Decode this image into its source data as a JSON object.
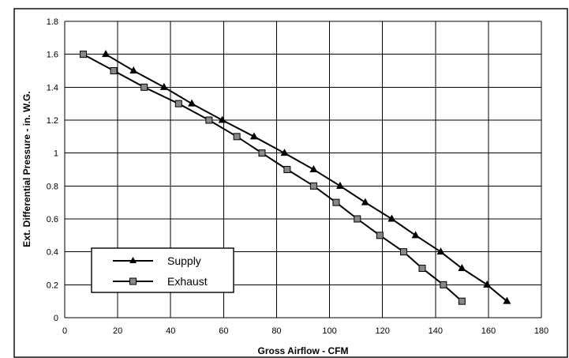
{
  "chart_data": {
    "type": "line",
    "xlabel": "Gross Airflow - CFM",
    "ylabel": "Ext. Differential Pressure - in. W.G.",
    "xlim": [
      0,
      180
    ],
    "ylim": [
      0,
      1.8
    ],
    "x_ticks": [
      "0",
      "20",
      "40",
      "60",
      "80",
      "100",
      "120",
      "140",
      "160",
      "180"
    ],
    "y_ticks": [
      "0",
      "0.2",
      "0.4",
      "0.6",
      "0.8",
      "1",
      "1.2",
      "1.4",
      "1.6",
      "1.8"
    ],
    "grid": true,
    "legend_position": "bottom-left",
    "series": [
      {
        "name": "Supply",
        "marker": "triangle",
        "color": "#000000",
        "points": [
          [
            15.5,
            1.6
          ],
          [
            26,
            1.5
          ],
          [
            37.5,
            1.4
          ],
          [
            48,
            1.3
          ],
          [
            59.5,
            1.2
          ],
          [
            71.5,
            1.1
          ],
          [
            83,
            1.0
          ],
          [
            94,
            0.9
          ],
          [
            104,
            0.8
          ],
          [
            113.5,
            0.7
          ],
          [
            123.5,
            0.6
          ],
          [
            132.5,
            0.5
          ],
          [
            142,
            0.4
          ],
          [
            150,
            0.3
          ],
          [
            159.5,
            0.2
          ],
          [
            167,
            0.1
          ]
        ]
      },
      {
        "name": "Exhaust",
        "marker": "square",
        "color": "#000000",
        "points": [
          [
            7,
            1.6
          ],
          [
            18.5,
            1.5
          ],
          [
            30,
            1.4
          ],
          [
            43,
            1.3
          ],
          [
            54.5,
            1.2
          ],
          [
            65,
            1.1
          ],
          [
            74.5,
            1.0
          ],
          [
            84,
            0.9
          ],
          [
            94,
            0.8
          ],
          [
            102.5,
            0.7
          ],
          [
            110.5,
            0.6
          ],
          [
            119,
            0.5
          ],
          [
            128,
            0.4
          ],
          [
            135,
            0.3
          ],
          [
            143,
            0.2
          ],
          [
            150,
            0.1
          ]
        ]
      }
    ]
  }
}
